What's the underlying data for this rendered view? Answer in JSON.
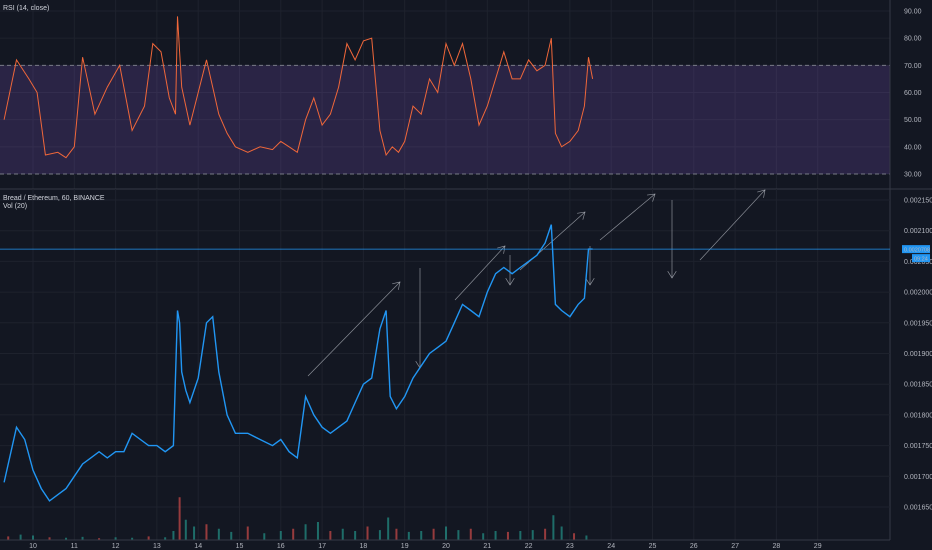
{
  "rsi_panel": {
    "title": "RSI (14, close)",
    "overbought": 70,
    "oversold": 30,
    "y_ticks": [
      "90.00",
      "80.00",
      "70.00",
      "60.00",
      "50.00",
      "40.00",
      "30.00"
    ]
  },
  "price_panel": {
    "title": "Bread / Ethereum, 60, BINANCE",
    "volume_label": "Vol (20)",
    "last_price_label": "0.0020708",
    "countdown_label": "09:24",
    "y_ticks": [
      "0.0021500",
      "0.0021000",
      "0.0020500",
      "0.0020000",
      "0.0019500",
      "0.0019000",
      "0.0018500",
      "0.0018000",
      "0.0017500",
      "0.0017000",
      "0.0016500"
    ]
  },
  "x_axis": {
    "ticks": [
      "10",
      "11",
      "12",
      "13",
      "14",
      "15",
      "16",
      "17",
      "18",
      "19",
      "20",
      "21",
      "22",
      "23",
      "24",
      "25",
      "26",
      "27",
      "28",
      "29"
    ]
  },
  "colors": {
    "background": "#131722",
    "rsi_line": "#f0673a",
    "rsi_band": "#7e57c2",
    "price_line": "#2196f3",
    "volume_up": "#26a69a",
    "volume_down": "#ef5350",
    "last_price_line": "#2196f3",
    "drawings": "#b2b5be"
  },
  "chart_data": [
    {
      "type": "line",
      "name": "RSI (14, close)",
      "x_unit": "day",
      "ylim": [
        27,
        92
      ],
      "x": [
        9.3,
        9.6,
        9.9,
        10.1,
        10.3,
        10.6,
        10.8,
        11.0,
        11.2,
        11.5,
        11.8,
        12.1,
        12.4,
        12.7,
        12.9,
        13.1,
        13.3,
        13.45,
        13.5,
        13.6,
        13.8,
        14.0,
        14.2,
        14.35,
        14.5,
        14.7,
        14.9,
        15.2,
        15.5,
        15.8,
        16.0,
        16.2,
        16.4,
        16.6,
        16.8,
        17.0,
        17.2,
        17.4,
        17.6,
        17.8,
        18.0,
        18.2,
        18.4,
        18.55,
        18.7,
        18.85,
        19.0,
        19.2,
        19.4,
        19.6,
        19.8,
        20.0,
        20.2,
        20.4,
        20.6,
        20.8,
        21.0,
        21.2,
        21.4,
        21.6,
        21.8,
        22.0,
        22.2,
        22.4,
        22.55,
        22.65,
        22.8,
        23.0,
        23.2,
        23.35,
        23.45,
        23.55
      ],
      "y": [
        50,
        72,
        65,
        60,
        37,
        38,
        36,
        40,
        73,
        52,
        62,
        70,
        46,
        55,
        78,
        75,
        58,
        52,
        88,
        62,
        48,
        60,
        72,
        62,
        52,
        45,
        40,
        38,
        40,
        39,
        42,
        40,
        38,
        50,
        58,
        48,
        52,
        62,
        78,
        72,
        79,
        80,
        46,
        37,
        40,
        38,
        42,
        55,
        52,
        65,
        60,
        78,
        70,
        78,
        65,
        48,
        55,
        65,
        75,
        65,
        65,
        72,
        68,
        70,
        80,
        45,
        40,
        42,
        46,
        55,
        73,
        65
      ]
    },
    {
      "type": "line",
      "name": "Bread / Ethereum, 60, BINANCE",
      "x_unit": "day",
      "ylim": [
        0.00162,
        0.00217
      ],
      "x": [
        9.3,
        9.6,
        9.8,
        10.0,
        10.2,
        10.4,
        10.6,
        10.8,
        11.0,
        11.2,
        11.4,
        11.6,
        11.8,
        12.0,
        12.2,
        12.4,
        12.6,
        12.8,
        13.0,
        13.2,
        13.4,
        13.5,
        13.55,
        13.6,
        13.7,
        13.8,
        14.0,
        14.2,
        14.35,
        14.5,
        14.7,
        14.9,
        15.2,
        15.5,
        15.8,
        16.0,
        16.2,
        16.4,
        16.6,
        16.8,
        17.0,
        17.2,
        17.4,
        17.6,
        17.8,
        18.0,
        18.2,
        18.4,
        18.55,
        18.65,
        18.8,
        19.0,
        19.2,
        19.4,
        19.6,
        19.8,
        20.0,
        20.2,
        20.4,
        20.6,
        20.8,
        21.0,
        21.2,
        21.4,
        21.6,
        21.8,
        22.0,
        22.2,
        22.4,
        22.55,
        22.65,
        22.8,
        23.0,
        23.2,
        23.35,
        23.45,
        23.55
      ],
      "y": [
        0.00169,
        0.00178,
        0.00176,
        0.00171,
        0.00168,
        0.00166,
        0.00167,
        0.00168,
        0.0017,
        0.00172,
        0.00173,
        0.00174,
        0.00173,
        0.00174,
        0.00174,
        0.00177,
        0.00176,
        0.00175,
        0.00175,
        0.00174,
        0.00175,
        0.00197,
        0.00195,
        0.00187,
        0.00184,
        0.00182,
        0.00186,
        0.00195,
        0.00196,
        0.00187,
        0.0018,
        0.00177,
        0.00177,
        0.00176,
        0.00175,
        0.00176,
        0.00174,
        0.00173,
        0.00183,
        0.0018,
        0.00178,
        0.00177,
        0.00178,
        0.00179,
        0.00182,
        0.00185,
        0.00186,
        0.00194,
        0.00197,
        0.00183,
        0.00181,
        0.00183,
        0.00186,
        0.00188,
        0.0019,
        0.00191,
        0.00192,
        0.00195,
        0.00198,
        0.00197,
        0.00196,
        0.002,
        0.00203,
        0.00204,
        0.00203,
        0.00204,
        0.00205,
        0.00206,
        0.00208,
        0.00211,
        0.00198,
        0.00197,
        0.00196,
        0.00198,
        0.00199,
        0.00207,
        0.00207
      ]
    },
    {
      "type": "bar",
      "name": "Vol (20)",
      "x_unit": "day",
      "x": [
        9.4,
        9.7,
        10.0,
        10.4,
        10.8,
        11.2,
        11.6,
        12.0,
        12.4,
        12.8,
        13.2,
        13.4,
        13.55,
        13.7,
        13.9,
        14.2,
        14.5,
        14.8,
        15.2,
        15.6,
        16.0,
        16.3,
        16.6,
        16.9,
        17.2,
        17.5,
        17.8,
        18.1,
        18.4,
        18.6,
        18.8,
        19.1,
        19.4,
        19.7,
        20.0,
        20.3,
        20.6,
        20.9,
        21.2,
        21.5,
        21.8,
        22.1,
        22.4,
        22.6,
        22.8,
        23.1,
        23.4
      ],
      "values": [
        0.08,
        0.12,
        0.1,
        0.06,
        0.05,
        0.07,
        0.04,
        0.06,
        0.05,
        0.08,
        0.06,
        0.2,
        0.95,
        0.45,
        0.3,
        0.35,
        0.25,
        0.18,
        0.3,
        0.15,
        0.2,
        0.25,
        0.35,
        0.4,
        0.2,
        0.25,
        0.2,
        0.3,
        0.22,
        0.5,
        0.25,
        0.18,
        0.2,
        0.25,
        0.3,
        0.22,
        0.25,
        0.15,
        0.2,
        0.18,
        0.2,
        0.22,
        0.25,
        0.55,
        0.3,
        0.15,
        0.1
      ]
    }
  ]
}
